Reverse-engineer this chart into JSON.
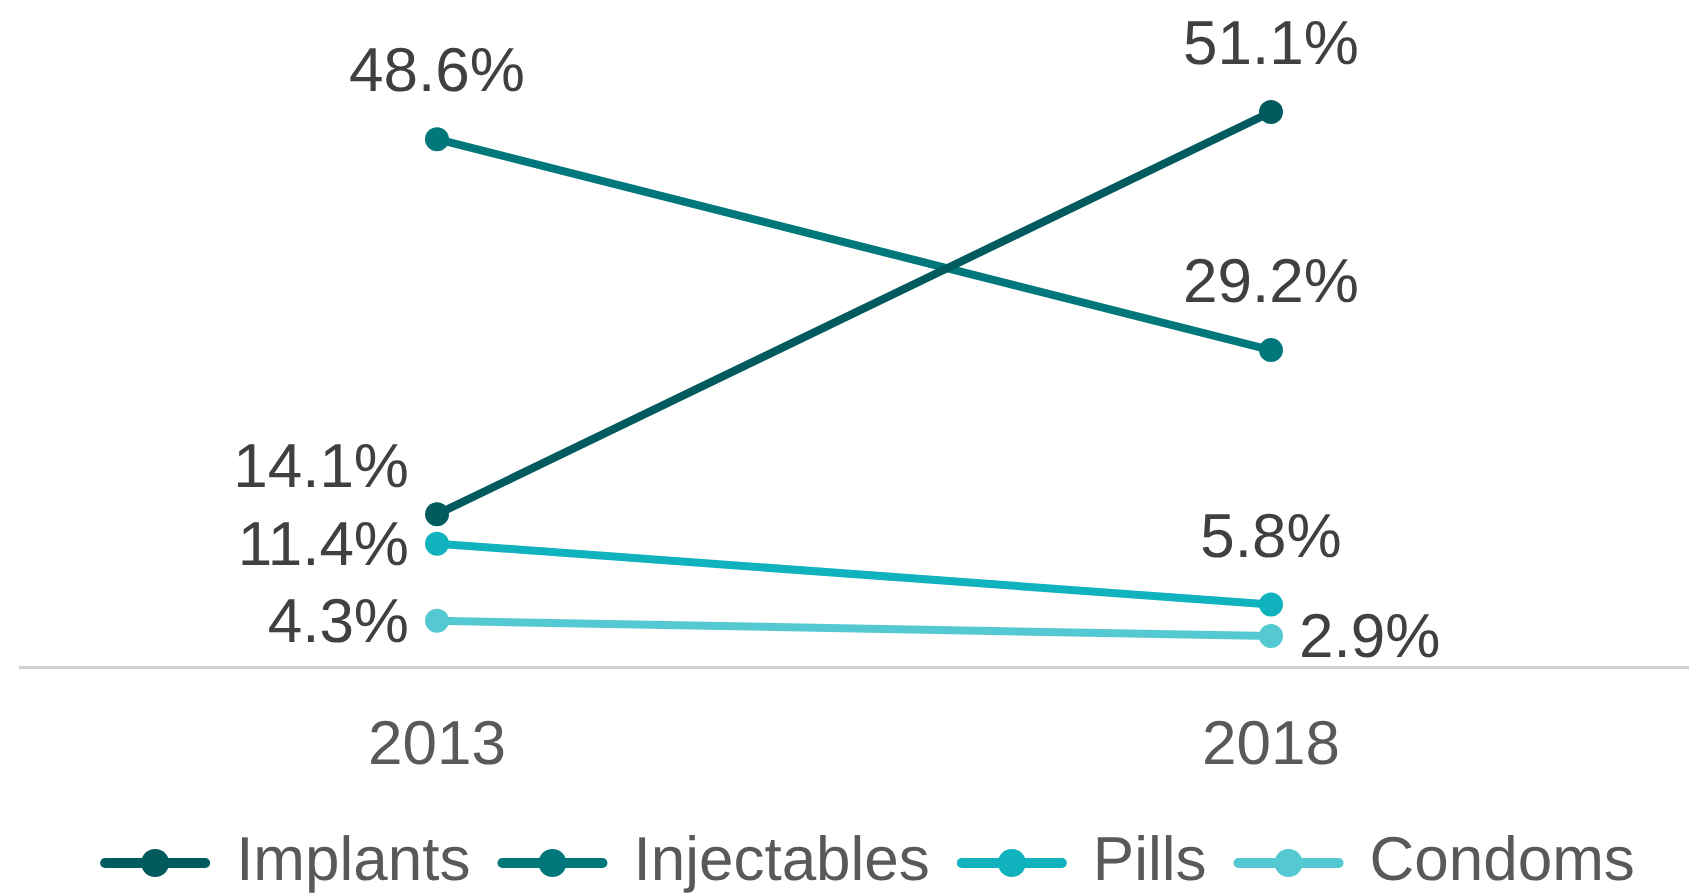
{
  "chart_data": {
    "type": "line",
    "categories": [
      "2013",
      "2018"
    ],
    "series": [
      {
        "name": "Implants",
        "color": "#005a5e",
        "values": [
          14.1,
          51.1
        ],
        "value_labels": [
          "14.1%",
          "51.1%"
        ]
      },
      {
        "name": "Injectables",
        "color": "#00777a",
        "values": [
          48.6,
          29.2
        ],
        "value_labels": [
          "48.6%",
          "29.2%"
        ]
      },
      {
        "name": "Pills",
        "color": "#0fb2bd",
        "values": [
          11.4,
          5.8
        ],
        "value_labels": [
          "11.4%",
          "5.8%"
        ]
      },
      {
        "name": "Condoms",
        "color": "#55c9d1",
        "values": [
          4.3,
          2.9
        ],
        "value_labels": [
          "4.3%",
          "2.9%"
        ]
      }
    ],
    "legend": "bottom",
    "marker": "circle",
    "grid": false,
    "tick_labels": "x"
  }
}
